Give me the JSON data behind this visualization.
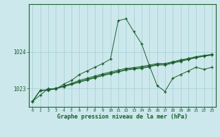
{
  "title": "Graphe pression niveau de la mer (hPa)",
  "background_color": "#cce8ec",
  "grid_color": "#a0ccd2",
  "line_color": "#1a5c2a",
  "xlim": [
    -0.5,
    23.5
  ],
  "ylim": [
    1022.5,
    1025.3
  ],
  "yticks": [
    1023,
    1024
  ],
  "xticks": [
    0,
    1,
    2,
    3,
    4,
    5,
    6,
    7,
    8,
    9,
    10,
    11,
    12,
    13,
    14,
    15,
    16,
    17,
    18,
    19,
    20,
    21,
    22,
    23
  ],
  "series1": [
    1022.65,
    1022.82,
    1023.0,
    1022.98,
    1023.12,
    1023.22,
    1023.38,
    1023.48,
    1023.58,
    1023.68,
    1023.8,
    1024.85,
    1024.9,
    1024.55,
    1024.22,
    1023.62,
    1023.08,
    1022.92,
    1023.28,
    1023.38,
    1023.48,
    1023.58,
    1023.52,
    1023.58
  ],
  "series2": [
    1022.65,
    1022.95,
    1022.95,
    1023.0,
    1023.06,
    1023.14,
    1023.22,
    1023.28,
    1023.34,
    1023.4,
    1023.45,
    1023.5,
    1023.55,
    1023.57,
    1023.6,
    1023.64,
    1023.68,
    1023.68,
    1023.73,
    1023.78,
    1023.82,
    1023.87,
    1023.9,
    1023.93
  ],
  "series3": [
    1022.65,
    1022.95,
    1022.97,
    1023.01,
    1023.07,
    1023.13,
    1023.19,
    1023.25,
    1023.31,
    1023.37,
    1023.42,
    1023.47,
    1023.52,
    1023.55,
    1023.57,
    1023.61,
    1023.66,
    1023.66,
    1023.71,
    1023.76,
    1023.8,
    1023.85,
    1023.89,
    1023.92
  ],
  "series4": [
    1022.65,
    1022.95,
    1022.96,
    1023.0,
    1023.05,
    1023.11,
    1023.17,
    1023.23,
    1023.29,
    1023.35,
    1023.4,
    1023.45,
    1023.5,
    1023.53,
    1023.55,
    1023.59,
    1023.64,
    1023.64,
    1023.69,
    1023.74,
    1023.79,
    1023.84,
    1023.88,
    1023.91
  ]
}
